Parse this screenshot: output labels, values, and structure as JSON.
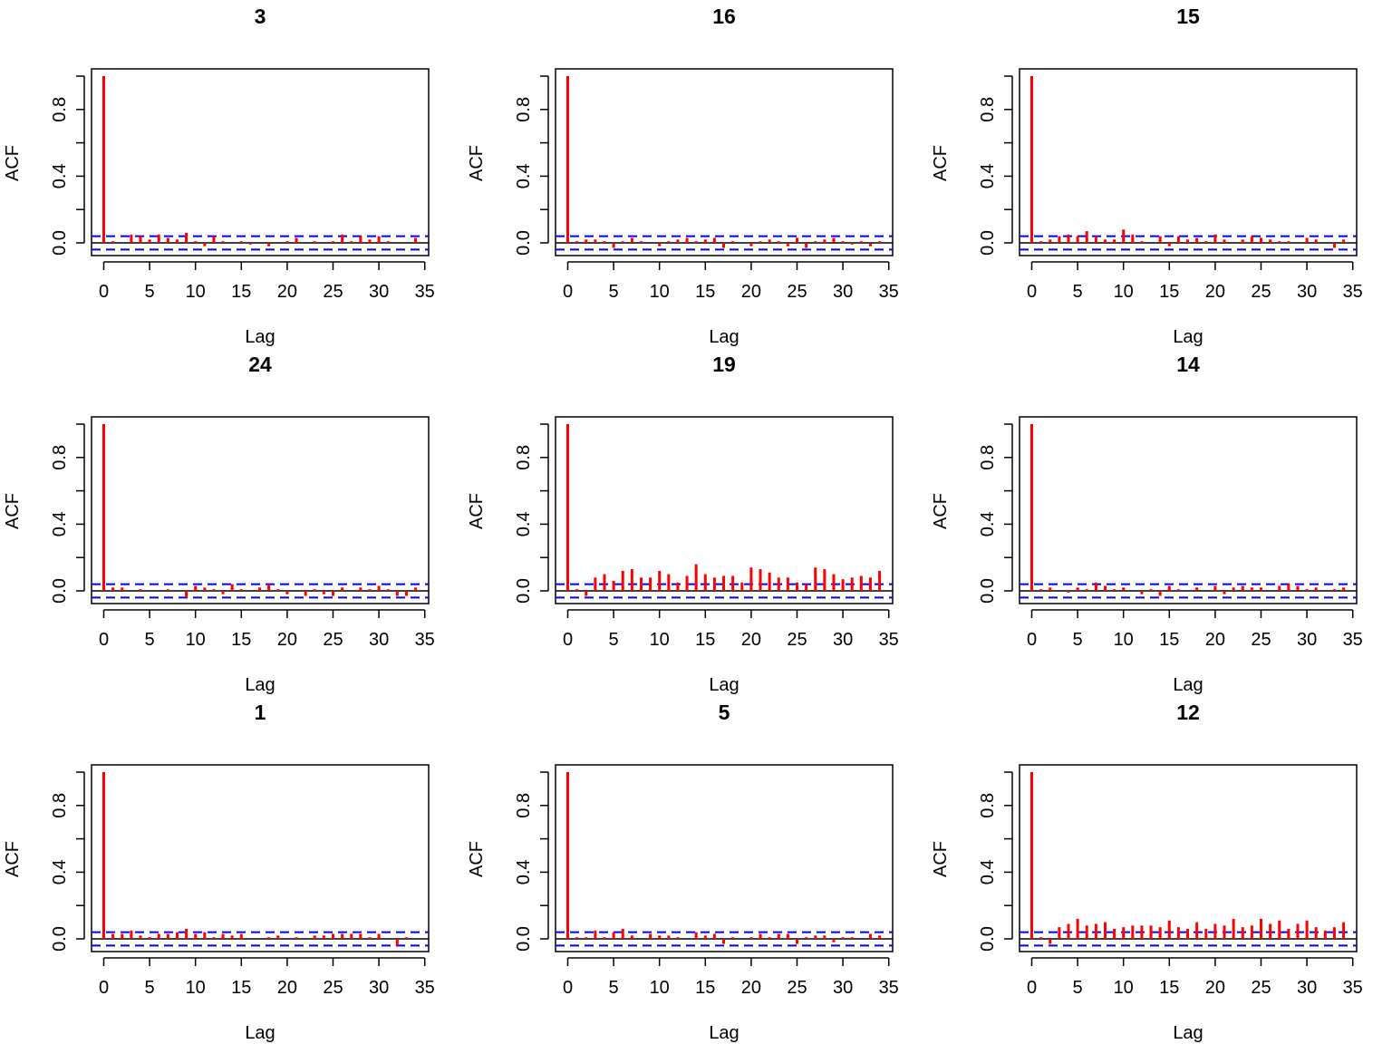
{
  "chart_data": [
    {
      "type": "bar",
      "title": "3",
      "xlabel": "Lag",
      "ylabel": "ACF",
      "xlim": [
        0,
        35
      ],
      "ylim": [
        -0.06,
        1.0
      ],
      "x_ticks": [
        "0",
        "5",
        "10",
        "15",
        "20",
        "25",
        "30",
        "35"
      ],
      "y_ticks": [
        "0.0",
        "0.4",
        "0.8"
      ],
      "ci": 0.04,
      "lags": [
        0,
        1,
        2,
        3,
        4,
        5,
        6,
        7,
        8,
        9,
        10,
        11,
        12,
        13,
        14,
        15,
        16,
        17,
        18,
        19,
        20,
        21,
        22,
        23,
        24,
        25,
        26,
        27,
        28,
        29,
        30,
        31,
        32,
        33,
        34
      ],
      "values": [
        1.0,
        0.01,
        0.0,
        0.05,
        0.04,
        0.02,
        0.05,
        0.03,
        0.02,
        0.06,
        0.01,
        -0.02,
        0.04,
        0.01,
        0.0,
        0.01,
        -0.01,
        0.0,
        -0.02,
        0.0,
        0.01,
        0.03,
        0.0,
        0.01,
        0.0,
        0.01,
        0.05,
        0.01,
        0.04,
        0.02,
        0.04,
        0.01,
        0.0,
        0.0,
        0.03
      ]
    },
    {
      "type": "bar",
      "title": "16",
      "xlabel": "Lag",
      "ylabel": "ACF",
      "xlim": [
        0,
        35
      ],
      "ylim": [
        -0.06,
        1.0
      ],
      "x_ticks": [
        "0",
        "5",
        "10",
        "15",
        "20",
        "25",
        "30",
        "35"
      ],
      "y_ticks": [
        "0.0",
        "0.4",
        "0.8"
      ],
      "ci": 0.04,
      "lags": [
        0,
        1,
        2,
        3,
        4,
        5,
        6,
        7,
        8,
        9,
        10,
        11,
        12,
        13,
        14,
        15,
        16,
        17,
        18,
        19,
        20,
        21,
        22,
        23,
        24,
        25,
        26,
        27,
        28,
        29,
        30,
        31,
        32,
        33,
        34
      ],
      "values": [
        1.0,
        0.01,
        0.02,
        0.02,
        0.01,
        -0.03,
        0.01,
        0.03,
        0.01,
        0.0,
        -0.02,
        0.01,
        0.02,
        0.03,
        0.01,
        0.02,
        0.03,
        -0.03,
        0.01,
        0.0,
        -0.02,
        0.01,
        0.02,
        0.01,
        -0.02,
        0.03,
        -0.03,
        0.01,
        0.02,
        0.03,
        0.01,
        -0.01,
        0.01,
        -0.02,
        0.01
      ]
    },
    {
      "type": "bar",
      "title": "15",
      "xlabel": "Lag",
      "ylabel": "ACF",
      "xlim": [
        0,
        35
      ],
      "ylim": [
        -0.06,
        1.0
      ],
      "x_ticks": [
        "0",
        "5",
        "10",
        "15",
        "20",
        "25",
        "30",
        "35"
      ],
      "y_ticks": [
        "0.0",
        "0.4",
        "0.8"
      ],
      "ci": 0.04,
      "lags": [
        0,
        1,
        2,
        3,
        4,
        5,
        6,
        7,
        8,
        9,
        10,
        11,
        12,
        13,
        14,
        15,
        16,
        17,
        18,
        19,
        20,
        21,
        22,
        23,
        24,
        25,
        26,
        27,
        28,
        29,
        30,
        31,
        32,
        33,
        34
      ],
      "values": [
        1.0,
        0.01,
        0.02,
        0.04,
        0.05,
        0.04,
        0.07,
        0.04,
        0.02,
        0.02,
        0.08,
        0.05,
        0.01,
        0.0,
        0.04,
        -0.02,
        0.04,
        0.02,
        0.03,
        0.01,
        0.05,
        0.02,
        0.0,
        0.02,
        0.04,
        0.03,
        0.02,
        0.01,
        0.01,
        0.0,
        0.03,
        0.02,
        0.0,
        -0.03,
        0.02
      ]
    },
    {
      "type": "bar",
      "title": "24",
      "xlabel": "Lag",
      "ylabel": "ACF",
      "xlim": [
        0,
        35
      ],
      "ylim": [
        -0.06,
        1.0
      ],
      "x_ticks": [
        "0",
        "5",
        "10",
        "15",
        "20",
        "25",
        "30",
        "35"
      ],
      "y_ticks": [
        "0.0",
        "0.4",
        "0.8"
      ],
      "ci": 0.04,
      "lags": [
        0,
        1,
        2,
        3,
        4,
        5,
        6,
        7,
        8,
        9,
        10,
        11,
        12,
        13,
        14,
        15,
        16,
        17,
        18,
        19,
        20,
        21,
        22,
        23,
        24,
        25,
        26,
        27,
        28,
        29,
        30,
        31,
        32,
        33,
        34
      ],
      "values": [
        1.0,
        0.02,
        0.02,
        0.0,
        0.01,
        0.0,
        0.0,
        0.01,
        0.0,
        -0.04,
        0.03,
        0.02,
        0.01,
        -0.02,
        0.04,
        0.01,
        0.0,
        0.02,
        0.04,
        0.01,
        -0.02,
        0.0,
        -0.03,
        0.01,
        -0.02,
        -0.03,
        0.02,
        0.0,
        0.02,
        0.01,
        0.03,
        0.01,
        -0.03,
        -0.03,
        0.02
      ]
    },
    {
      "type": "bar",
      "title": "19",
      "xlabel": "Lag",
      "ylabel": "ACF",
      "xlim": [
        0,
        35
      ],
      "ylim": [
        -0.06,
        1.0
      ],
      "x_ticks": [
        "0",
        "5",
        "10",
        "15",
        "20",
        "25",
        "30",
        "35"
      ],
      "y_ticks": [
        "0.0",
        "0.4",
        "0.8"
      ],
      "ci": 0.04,
      "lags": [
        0,
        1,
        2,
        3,
        4,
        5,
        6,
        7,
        8,
        9,
        10,
        11,
        12,
        13,
        14,
        15,
        16,
        17,
        18,
        19,
        20,
        21,
        22,
        23,
        24,
        25,
        26,
        27,
        28,
        29,
        30,
        31,
        32,
        33,
        34
      ],
      "values": [
        1.0,
        0.01,
        -0.03,
        0.08,
        0.1,
        0.06,
        0.12,
        0.13,
        0.08,
        0.08,
        0.12,
        0.1,
        0.05,
        0.09,
        0.16,
        0.1,
        0.08,
        0.09,
        0.09,
        0.05,
        0.14,
        0.13,
        0.11,
        0.08,
        0.08,
        0.05,
        0.04,
        0.14,
        0.13,
        0.1,
        0.07,
        0.08,
        0.09,
        0.08,
        0.12
      ]
    },
    {
      "type": "bar",
      "title": "14",
      "xlabel": "Lag",
      "ylabel": "ACF",
      "xlim": [
        0,
        35
      ],
      "ylim": [
        -0.06,
        1.0
      ],
      "x_ticks": [
        "0",
        "5",
        "10",
        "15",
        "20",
        "25",
        "30",
        "35"
      ],
      "y_ticks": [
        "0.0",
        "0.4",
        "0.8"
      ],
      "ci": 0.04,
      "lags": [
        0,
        1,
        2,
        3,
        4,
        5,
        6,
        7,
        8,
        9,
        10,
        11,
        12,
        13,
        14,
        15,
        16,
        17,
        18,
        19,
        20,
        21,
        22,
        23,
        24,
        25,
        26,
        27,
        28,
        29,
        30,
        31,
        32,
        33,
        34
      ],
      "values": [
        1.0,
        0.01,
        0.02,
        0.0,
        -0.01,
        0.02,
        0.01,
        0.05,
        0.03,
        0.01,
        0.02,
        0.0,
        -0.02,
        0.01,
        -0.03,
        0.03,
        0.01,
        0.0,
        0.02,
        0.0,
        0.03,
        -0.02,
        0.02,
        0.03,
        0.02,
        0.02,
        0.0,
        0.03,
        0.04,
        0.03,
        0.01,
        0.02,
        0.0,
        0.01,
        0.02
      ]
    },
    {
      "type": "bar",
      "title": "1",
      "xlabel": "Lag",
      "ylabel": "ACF",
      "xlim": [
        0,
        35
      ],
      "ylim": [
        -0.06,
        1.0
      ],
      "x_ticks": [
        "0",
        "5",
        "10",
        "15",
        "20",
        "25",
        "30",
        "35"
      ],
      "y_ticks": [
        "0.0",
        "0.4",
        "0.8"
      ],
      "ci": 0.04,
      "lags": [
        0,
        1,
        2,
        3,
        4,
        5,
        6,
        7,
        8,
        9,
        10,
        11,
        12,
        13,
        14,
        15,
        16,
        17,
        18,
        19,
        20,
        21,
        22,
        23,
        24,
        25,
        26,
        27,
        28,
        29,
        30,
        31,
        32,
        33,
        34
      ],
      "values": [
        1.0,
        0.03,
        0.03,
        0.05,
        0.02,
        0.01,
        0.03,
        0.03,
        0.04,
        0.06,
        0.03,
        0.04,
        0.01,
        0.03,
        0.02,
        0.03,
        0.0,
        0.0,
        0.01,
        0.02,
        0.0,
        0.01,
        0.0,
        0.02,
        0.02,
        0.03,
        0.03,
        0.03,
        0.03,
        0.01,
        0.03,
        0.0,
        -0.04,
        0.01,
        0.0
      ]
    },
    {
      "type": "bar",
      "title": "5",
      "xlabel": "Lag",
      "ylabel": "ACF",
      "xlim": [
        0,
        35
      ],
      "ylim": [
        -0.06,
        1.0
      ],
      "x_ticks": [
        "0",
        "5",
        "10",
        "15",
        "20",
        "25",
        "30",
        "35"
      ],
      "y_ticks": [
        "0.0",
        "0.4",
        "0.8"
      ],
      "ci": 0.04,
      "lags": [
        0,
        1,
        2,
        3,
        4,
        5,
        6,
        7,
        8,
        9,
        10,
        11,
        12,
        13,
        14,
        15,
        16,
        17,
        18,
        19,
        20,
        21,
        22,
        23,
        24,
        25,
        26,
        27,
        28,
        29,
        30,
        31,
        32,
        33,
        34
      ],
      "values": [
        1.0,
        0.01,
        0.01,
        0.05,
        0.01,
        0.04,
        0.06,
        0.02,
        0.0,
        0.03,
        0.02,
        0.02,
        0.01,
        0.0,
        0.04,
        0.02,
        0.03,
        -0.03,
        0.01,
        0.0,
        0.01,
        0.03,
        0.01,
        0.03,
        0.03,
        -0.03,
        0.01,
        0.02,
        0.02,
        -0.02,
        0.01,
        0.01,
        0.0,
        0.03,
        0.02
      ]
    },
    {
      "type": "bar",
      "title": "12",
      "xlabel": "Lag",
      "ylabel": "ACF",
      "xlim": [
        0,
        35
      ],
      "ylim": [
        -0.06,
        1.0
      ],
      "x_ticks": [
        "0",
        "5",
        "10",
        "15",
        "20",
        "25",
        "30",
        "35"
      ],
      "y_ticks": [
        "0.0",
        "0.4",
        "0.8"
      ],
      "ci": 0.04,
      "lags": [
        0,
        1,
        2,
        3,
        4,
        5,
        6,
        7,
        8,
        9,
        10,
        11,
        12,
        13,
        14,
        15,
        16,
        17,
        18,
        19,
        20,
        21,
        22,
        23,
        24,
        25,
        26,
        27,
        28,
        29,
        30,
        31,
        32,
        33,
        34
      ],
      "values": [
        1.0,
        0.01,
        -0.03,
        0.07,
        0.09,
        0.12,
        0.08,
        0.09,
        0.1,
        0.06,
        0.07,
        0.08,
        0.08,
        0.08,
        0.07,
        0.11,
        0.07,
        0.06,
        0.1,
        0.06,
        0.09,
        0.08,
        0.12,
        0.07,
        0.08,
        0.12,
        0.09,
        0.11,
        0.06,
        0.09,
        0.11,
        0.07,
        0.05,
        0.07,
        0.1
      ]
    }
  ],
  "colors": {
    "bars": "#ff0000",
    "ci": "#0000ff",
    "axis": "#000000"
  }
}
